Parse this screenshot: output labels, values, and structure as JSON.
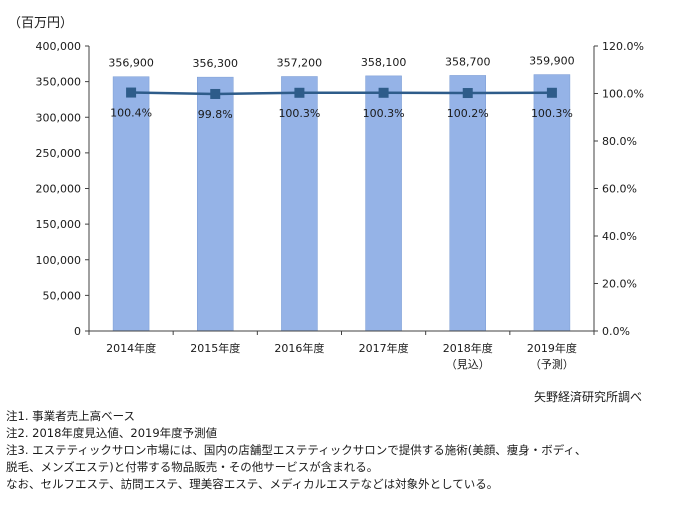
{
  "chart_data": {
    "type": "bar+line",
    "y_unit": "（百万円）",
    "categories": [
      "2014年度",
      "2015年度",
      "2016年度",
      "2017年度",
      "2018年度",
      "2019年度"
    ],
    "category_sublabels": [
      "",
      "",
      "",
      "",
      "（見込）",
      "（予測）"
    ],
    "bar_series": {
      "values": [
        356900,
        356300,
        357200,
        358100,
        358700,
        359900
      ],
      "labels": [
        "356,900",
        "356,300",
        "357,200",
        "358,100",
        "358,700",
        "359,900"
      ],
      "color": "#95b3e7"
    },
    "line_series": {
      "values": [
        100.4,
        99.8,
        100.3,
        100.3,
        100.2,
        100.3
      ],
      "labels": [
        "100.4%",
        "99.8%",
        "100.3%",
        "100.3%",
        "100.2%",
        "100.3%"
      ],
      "color": "#2e5c8a"
    },
    "y_left": {
      "min": 0,
      "max": 400000,
      "ticks": [
        "0",
        "50,000",
        "100,000",
        "150,000",
        "200,000",
        "250,000",
        "300,000",
        "350,000",
        "400,000"
      ]
    },
    "y_right": {
      "min": 0,
      "max": 120,
      "ticks": [
        "0.0%",
        "20.0%",
        "40.0%",
        "60.0%",
        "80.0%",
        "100.0%",
        "120.0%"
      ]
    },
    "grid": false
  },
  "source": "矢野経済研究所調べ",
  "notes": [
    "注1. 事業者売上高ベース",
    "注2. 2018年度見込値、2019年度予測値",
    "注3. エステティックサロン市場には、国内の店舗型エステティックサロンで提供する施術(美顔、痩身・ボディ、",
    "脱毛、メンズエステ)と付帯する物品販売・その他サービスが含まれる。",
    "なお、セルフエステ、訪問エステ、理美容エステ、メディカルエステなどは対象外としている。"
  ]
}
